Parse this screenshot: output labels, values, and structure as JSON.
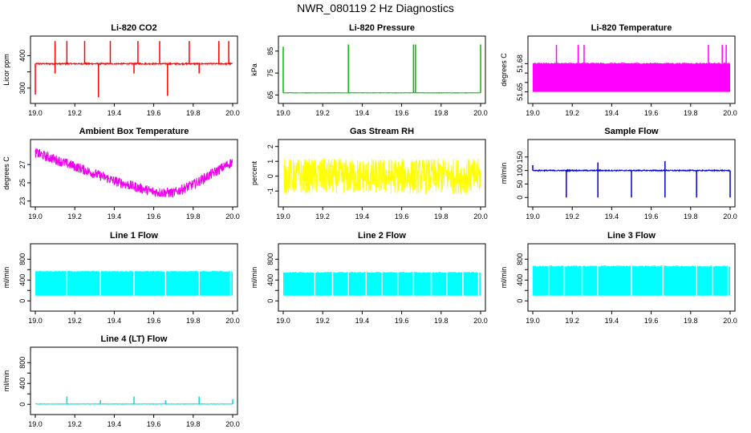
{
  "title": "NWR_080119  2 Hz Diagnostics",
  "chart_data": [
    {
      "type": "line",
      "title": "Li-820 CO2",
      "ylabel": "Licor ppm",
      "color": "#ff0000",
      "xlim": [
        19.0,
        20.0
      ],
      "ylim": [
        265,
        448
      ],
      "yticks": [
        300,
        350,
        400
      ],
      "ytick_labels": [
        "300",
        "",
        "400"
      ],
      "xticks": [
        19.0,
        19.2,
        19.4,
        19.6,
        19.8,
        20.0
      ],
      "xtick_labels": [
        "19.0",
        "19.2",
        "19.4",
        "19.6",
        "19.8",
        "20.0"
      ],
      "base": 375,
      "noise": 4,
      "spikes": [
        {
          "x": 19.1,
          "y": 445
        },
        {
          "x": 19.16,
          "y": 445
        },
        {
          "x": 19.25,
          "y": 445
        },
        {
          "x": 19.38,
          "y": 445
        },
        {
          "x": 19.52,
          "y": 445
        },
        {
          "x": 19.63,
          "y": 445
        },
        {
          "x": 19.78,
          "y": 445
        },
        {
          "x": 19.93,
          "y": 445
        },
        {
          "x": 19.98,
          "y": 445
        }
      ],
      "dips": [
        {
          "x": 19.0,
          "y": 280
        },
        {
          "x": 19.32,
          "y": 272
        },
        {
          "x": 19.67,
          "y": 276
        },
        {
          "x": 19.1,
          "y": 345
        },
        {
          "x": 19.5,
          "y": 345
        },
        {
          "x": 19.83,
          "y": 345
        }
      ]
    },
    {
      "type": "line",
      "title": "Li-820 Pressure",
      "ylabel": "kPa",
      "color": "#00bb00",
      "xlim": [
        19.0,
        20.0
      ],
      "ylim": [
        63,
        90
      ],
      "yticks": [
        65,
        75,
        85
      ],
      "ytick_labels": [
        "65",
        "75",
        "85"
      ],
      "xticks": [
        19.0,
        19.2,
        19.4,
        19.6,
        19.8,
        20.0
      ],
      "xtick_labels": [
        "19.0",
        "19.2",
        "19.4",
        "19.6",
        "19.8",
        "20.0"
      ],
      "base": 66,
      "noise": 0.15,
      "spikes": [
        {
          "x": 19.0,
          "y": 87
        },
        {
          "x": 19.33,
          "y": 88
        },
        {
          "x": 19.66,
          "y": 88
        },
        {
          "x": 19.67,
          "y": 88
        },
        {
          "x": 20.0,
          "y": 88
        }
      ],
      "dips": []
    },
    {
      "type": "area",
      "title": "Li-820 Temperature",
      "ylabel": "degrees C",
      "color": "#ff00ff",
      "xlim": [
        19.0,
        20.0
      ],
      "ylim": [
        51.642,
        51.705
      ],
      "yticks": [
        51.65,
        51.66,
        51.67,
        51.68
      ],
      "ytick_labels": [
        "51.65",
        "",
        "",
        "51.68"
      ],
      "xticks": [
        19.0,
        19.2,
        19.4,
        19.6,
        19.8,
        20.0
      ],
      "xtick_labels": [
        "19.0",
        "19.2",
        "19.4",
        "19.6",
        "19.8",
        "20.0"
      ],
      "band": [
        51.65,
        51.68
      ],
      "spikes": [
        {
          "x": 19.12,
          "y": 51.7
        },
        {
          "x": 19.23,
          "y": 51.7
        },
        {
          "x": 19.26,
          "y": 51.7
        },
        {
          "x": 19.89,
          "y": 51.7
        },
        {
          "x": 19.96,
          "y": 51.7
        },
        {
          "x": 19.98,
          "y": 51.7
        }
      ]
    },
    {
      "type": "line",
      "title": "Ambient Box Temperature",
      "ylabel": "degrees C",
      "color": "#ee00ee",
      "xlim": [
        19.0,
        20.0
      ],
      "ylim": [
        22.8,
        29.3
      ],
      "yticks": [
        23,
        25,
        27
      ],
      "ytick_labels": [
        "23",
        "25",
        "27"
      ],
      "xticks": [
        19.0,
        19.2,
        19.4,
        19.6,
        19.8,
        20.0
      ],
      "xtick_labels": [
        "19.0",
        "19.2",
        "19.4",
        "19.6",
        "19.8",
        "20.0"
      ],
      "curve": [
        [
          19.0,
          28.3
        ],
        [
          19.2,
          26.8
        ],
        [
          19.4,
          25.2
        ],
        [
          19.6,
          24.0
        ],
        [
          19.7,
          23.9
        ],
        [
          19.8,
          24.8
        ],
        [
          20.0,
          27.3
        ]
      ],
      "noise": 1.1
    },
    {
      "type": "line",
      "title": "Gas Stream RH",
      "ylabel": "percent",
      "color": "#ffff00",
      "xlim": [
        19.0,
        20.0
      ],
      "ylim": [
        -1.8,
        2.2
      ],
      "yticks": [
        -1,
        0,
        1,
        2
      ],
      "ytick_labels": [
        "-1",
        "0",
        "1",
        "2"
      ],
      "xticks": [
        19.0,
        19.2,
        19.4,
        19.6,
        19.8,
        20.0
      ],
      "xtick_labels": [
        "19.0",
        "19.2",
        "19.4",
        "19.6",
        "19.8",
        "20.0"
      ],
      "base": 0,
      "noise": 2.4
    },
    {
      "type": "line",
      "title": "Sample Flow",
      "ylabel": "ml/min",
      "color": "#0000cc",
      "xlim": [
        19.0,
        20.0
      ],
      "ylim": [
        -20,
        200
      ],
      "yticks": [
        0,
        50,
        100,
        150
      ],
      "ytick_labels": [
        "0",
        "50",
        "100",
        "150"
      ],
      "xticks": [
        19.0,
        19.2,
        19.4,
        19.6,
        19.8,
        20.0
      ],
      "xtick_labels": [
        "19.0",
        "19.2",
        "19.4",
        "19.6",
        "19.8",
        "20.0"
      ],
      "base": 100,
      "noise": 4,
      "spikes": [
        {
          "x": 19.0,
          "y": 120
        },
        {
          "x": 19.33,
          "y": 130
        },
        {
          "x": 19.67,
          "y": 135
        }
      ],
      "dips": [
        {
          "x": 19.17,
          "y": 0
        },
        {
          "x": 19.33,
          "y": 0
        },
        {
          "x": 19.5,
          "y": 0
        },
        {
          "x": 19.67,
          "y": 0
        },
        {
          "x": 19.83,
          "y": 0
        },
        {
          "x": 20.0,
          "y": 0
        }
      ]
    },
    {
      "type": "area",
      "title": "Line 1 Flow",
      "ylabel": "ml/min",
      "color": "#00ffff",
      "xlim": [
        19.0,
        20.0
      ],
      "ylim": [
        -120,
        1020
      ],
      "yticks": [
        0,
        200,
        400,
        600,
        800
      ],
      "ytick_labels": [
        "0",
        "",
        "400",
        "",
        "800"
      ],
      "xticks": [
        19.0,
        19.2,
        19.4,
        19.6,
        19.8,
        20.0
      ],
      "xtick_labels": [
        "19.0",
        "19.2",
        "19.4",
        "19.6",
        "19.8",
        "20.0"
      ],
      "band": [
        100,
        560
      ],
      "gaps": [
        19.16,
        19.33,
        19.5,
        19.66,
        19.83,
        19.99
      ]
    },
    {
      "type": "area",
      "title": "Line 2 Flow",
      "ylabel": "ml/min",
      "color": "#00ffff",
      "xlim": [
        19.0,
        20.0
      ],
      "ylim": [
        -120,
        1020
      ],
      "yticks": [
        0,
        200,
        400,
        600,
        800
      ],
      "ytick_labels": [
        "0",
        "",
        "400",
        "",
        "800"
      ],
      "xticks": [
        19.0,
        19.2,
        19.4,
        19.6,
        19.8,
        20.0
      ],
      "xtick_labels": [
        "19.0",
        "19.2",
        "19.4",
        "19.6",
        "19.8",
        "20.0"
      ],
      "band": [
        100,
        540
      ],
      "gaps": [
        19.16,
        19.25,
        19.33,
        19.42,
        19.5,
        19.58,
        19.66,
        19.75,
        19.83,
        19.91,
        19.99
      ]
    },
    {
      "type": "area",
      "title": "Line 3 Flow",
      "ylabel": "ml/min",
      "color": "#00ffff",
      "xlim": [
        19.0,
        20.0
      ],
      "ylim": [
        -120,
        1020
      ],
      "yticks": [
        0,
        200,
        400,
        600,
        800
      ],
      "ytick_labels": [
        "0",
        "",
        "400",
        "",
        "800"
      ],
      "xticks": [
        19.0,
        19.2,
        19.4,
        19.6,
        19.8,
        20.0
      ],
      "xtick_labels": [
        "19.0",
        "19.2",
        "19.4",
        "19.6",
        "19.8",
        "20.0"
      ],
      "band": [
        100,
        660
      ],
      "gaps": [
        19.08,
        19.16,
        19.25,
        19.33,
        19.5,
        19.66,
        19.83,
        19.91,
        19.99
      ]
    },
    {
      "type": "line",
      "title": "Line 4 (LT) Flow",
      "ylabel": "ml/min",
      "color": "#00dddd",
      "xlim": [
        19.0,
        20.0
      ],
      "ylim": [
        -120,
        1020
      ],
      "yticks": [
        0,
        200,
        400,
        600,
        800
      ],
      "ytick_labels": [
        "0",
        "",
        "400",
        "",
        "800"
      ],
      "xticks": [
        19.0,
        19.2,
        19.4,
        19.6,
        19.8,
        20.0
      ],
      "xtick_labels": [
        "19.0",
        "19.2",
        "19.4",
        "19.6",
        "19.8",
        "20.0"
      ],
      "base": 5,
      "noise": 8,
      "spikes": [
        {
          "x": 19.16,
          "y": 150
        },
        {
          "x": 19.33,
          "y": 80
        },
        {
          "x": 19.5,
          "y": 150
        },
        {
          "x": 19.66,
          "y": 80
        },
        {
          "x": 19.83,
          "y": 150
        },
        {
          "x": 20.0,
          "y": 100
        }
      ]
    }
  ]
}
